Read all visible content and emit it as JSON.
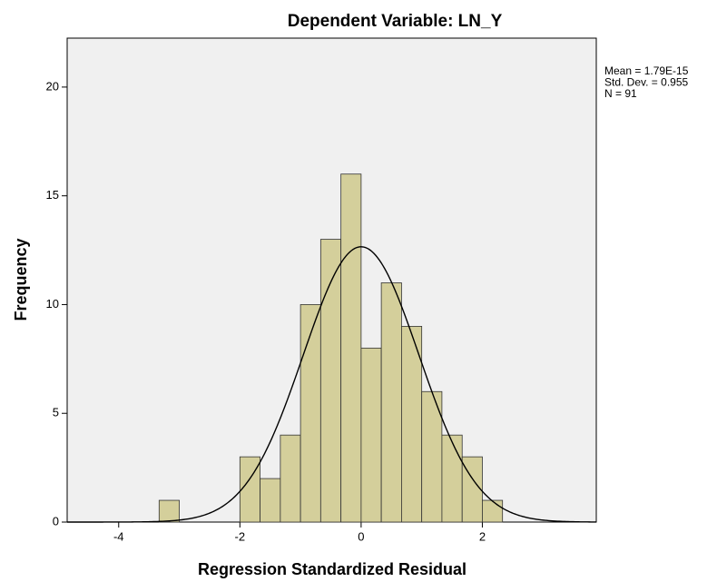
{
  "chart_data": {
    "type": "histogram",
    "title": "Dependent Variable: LN_Y",
    "x_label": "Regression Standardized Residual",
    "y_label": "Frequency",
    "bins": [
      -3.333,
      -3,
      -2.667,
      -2.333,
      -2,
      -1.667,
      -1.333,
      -1,
      -0.667,
      -0.333,
      0,
      0.333,
      0.667,
      1,
      1.333,
      1.667,
      2,
      2.333
    ],
    "values": [
      1,
      0,
      0,
      0,
      3,
      2,
      4,
      10,
      13,
      16,
      8,
      11,
      9,
      6,
      4,
      3,
      1
    ],
    "color": "#d4cf9b",
    "xlim": [
      -4.85,
      3.88
    ],
    "ylim": [
      0,
      22.25
    ],
    "xticks": [
      -4,
      -2,
      0,
      2
    ],
    "yticks": [
      0,
      5,
      10,
      15,
      20
    ],
    "annotations": [
      "Mean = 1.79E-15",
      "Std. Dev. = 0.955",
      "N = 91"
    ],
    "normal_curve": {
      "mean": 1.79e-15,
      "std": 0.955,
      "n": 91
    }
  }
}
